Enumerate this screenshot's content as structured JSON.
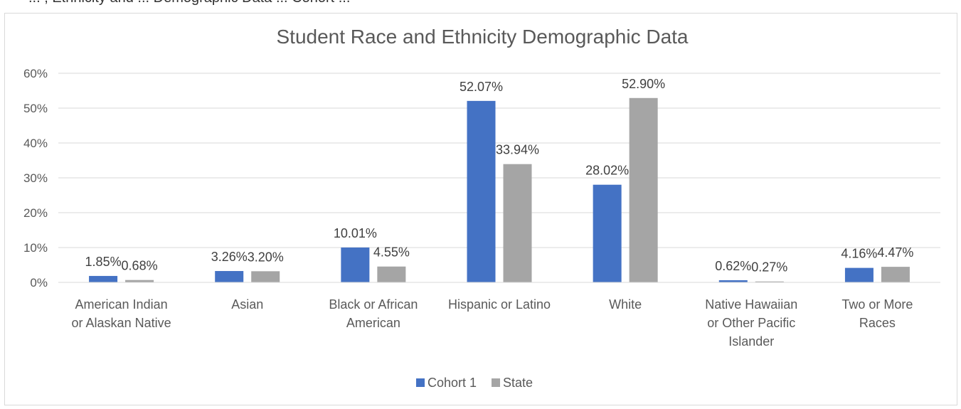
{
  "header_fragment": "... , Ethnicity and ... Demographic Data ... Cohort ...",
  "chart_data": {
    "type": "bar",
    "title": "Student Race and Ethnicity Demographic Data",
    "xlabel": "",
    "ylabel": "",
    "ylim": [
      0,
      60
    ],
    "y_ticks": [
      "0%",
      "10%",
      "20%",
      "30%",
      "40%",
      "50%",
      "60%"
    ],
    "grid": true,
    "legend_position": "bottom",
    "categories": [
      [
        "American Indian",
        "or Alaskan Native"
      ],
      [
        "Asian"
      ],
      [
        "Black or African",
        "American"
      ],
      [
        "Hispanic or Latino"
      ],
      [
        "White"
      ],
      [
        "Native Hawaiian",
        "or Other Pacific",
        "Islander"
      ],
      [
        "Two or More",
        "Races"
      ]
    ],
    "series": [
      {
        "name": "Cohort 1",
        "color": "#4472c4",
        "values": [
          1.85,
          3.26,
          10.01,
          52.07,
          28.02,
          0.62,
          4.16
        ],
        "labels": [
          "1.85%",
          "3.26%",
          "10.01%",
          "52.07%",
          "28.02%",
          "0.62%",
          "4.16%"
        ]
      },
      {
        "name": "State",
        "color": "#a5a5a5",
        "values": [
          0.68,
          3.2,
          4.55,
          33.94,
          52.9,
          0.27,
          4.47
        ],
        "labels": [
          "0.68%",
          "3.20%",
          "4.55%",
          "33.94%",
          "52.90%",
          "0.27%",
          "4.47%"
        ]
      }
    ]
  }
}
